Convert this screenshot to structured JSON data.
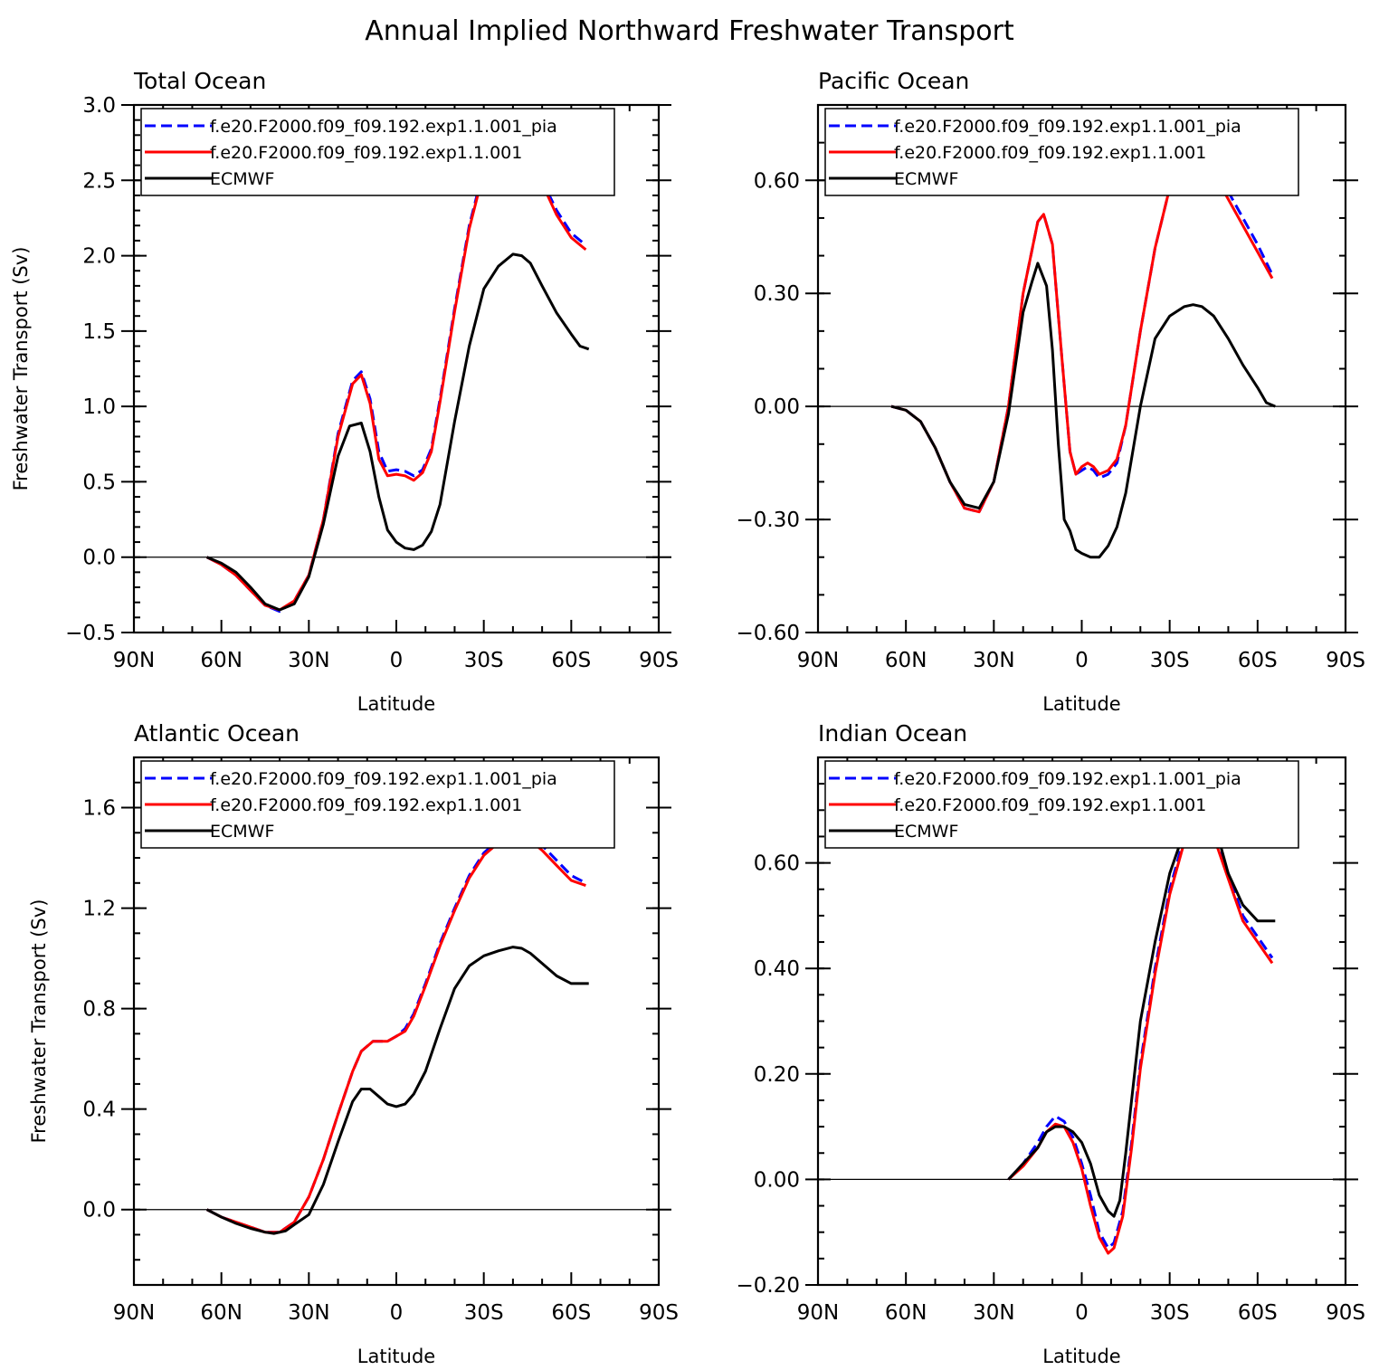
{
  "title": "Annual Implied Northward Freshwater Transport",
  "ylabel": "Freshwater Transport (Sv)",
  "xlabel": "Latitude",
  "x_ticks": [
    {
      "v": -90,
      "label": "90N"
    },
    {
      "v": -60,
      "label": "60N"
    },
    {
      "v": -30,
      "label": "30N"
    },
    {
      "v": 0,
      "label": "0"
    },
    {
      "v": 30,
      "label": "30S"
    },
    {
      "v": 60,
      "label": "60S"
    },
    {
      "v": 90,
      "label": "90S"
    }
  ],
  "series_styles": [
    {
      "name": "f.e20.F2000.f09_f09.192.exp1.1.001_pia",
      "color": "#0000ff",
      "dash": "12,6"
    },
    {
      "name": "f.e20.F2000.f09_f09.192.exp1.1.001",
      "color": "#ff0000",
      "dash": ""
    },
    {
      "name": "ECMWF",
      "color": "#000000",
      "dash": ""
    }
  ],
  "chart_data": [
    {
      "type": "line",
      "title": "Total Ocean",
      "xlim": [
        -90,
        90
      ],
      "ylim": [
        -0.5,
        3.0
      ],
      "ymajor": [
        -0.5,
        0.0,
        0.5,
        1.0,
        1.5,
        2.0,
        2.5,
        3.0
      ],
      "ylabels": [
        "−0.5",
        "0.0",
        "0.5",
        "1.0",
        "1.5",
        "2.0",
        "2.5",
        "3.0"
      ],
      "yminor_step": 0.1,
      "show_ylabel": true,
      "series": [
        {
          "name": "f.e20.F2000.f09_f09.192.exp1.1.001_pia",
          "x": [
            -65,
            -60,
            -55,
            -50,
            -45,
            -40,
            -35,
            -30,
            -25,
            -20,
            -15,
            -12,
            -9,
            -6,
            -3,
            0,
            3,
            6,
            9,
            12,
            15,
            20,
            25,
            30,
            35,
            40,
            45,
            50,
            55,
            60,
            65
          ],
          "y": [
            0,
            -0.05,
            -0.12,
            -0.22,
            -0.32,
            -0.36,
            -0.29,
            -0.12,
            0.25,
            0.82,
            1.17,
            1.23,
            1.05,
            0.7,
            0.57,
            0.58,
            0.57,
            0.54,
            0.58,
            0.72,
            1.05,
            1.65,
            2.2,
            2.58,
            2.78,
            2.85,
            2.72,
            2.5,
            2.3,
            2.15,
            2.07
          ]
        },
        {
          "name": "f.e20.F2000.f09_f09.192.exp1.1.001",
          "x": [
            -65,
            -60,
            -55,
            -50,
            -45,
            -40,
            -35,
            -30,
            -25,
            -20,
            -15,
            -12,
            -9,
            -6,
            -3,
            0,
            3,
            6,
            9,
            12,
            15,
            20,
            25,
            30,
            35,
            40,
            45,
            50,
            55,
            60,
            65
          ],
          "y": [
            0,
            -0.05,
            -0.12,
            -0.22,
            -0.32,
            -0.35,
            -0.29,
            -0.12,
            0.25,
            0.8,
            1.15,
            1.21,
            1.02,
            0.65,
            0.54,
            0.55,
            0.54,
            0.51,
            0.56,
            0.7,
            1.03,
            1.63,
            2.18,
            2.56,
            2.75,
            2.82,
            2.7,
            2.48,
            2.27,
            2.12,
            2.04
          ]
        },
        {
          "name": "ECMWF",
          "x": [
            -65,
            -60,
            -55,
            -50,
            -45,
            -40,
            -35,
            -30,
            -25,
            -20,
            -16,
            -12,
            -9,
            -6,
            -3,
            0,
            3,
            6,
            9,
            12,
            15,
            20,
            25,
            30,
            35,
            40,
            43,
            46,
            50,
            55,
            60,
            63,
            66
          ],
          "y": [
            0,
            -0.04,
            -0.1,
            -0.2,
            -0.31,
            -0.35,
            -0.31,
            -0.13,
            0.22,
            0.67,
            0.87,
            0.89,
            0.7,
            0.4,
            0.18,
            0.1,
            0.06,
            0.05,
            0.08,
            0.17,
            0.35,
            0.9,
            1.4,
            1.78,
            1.93,
            2.01,
            2.0,
            1.95,
            1.8,
            1.62,
            1.48,
            1.4,
            1.38
          ]
        }
      ]
    },
    {
      "type": "line",
      "title": "Pacific Ocean",
      "xlim": [
        -90,
        90
      ],
      "ylim": [
        -0.6,
        0.8
      ],
      "ymajor": [
        -0.6,
        -0.3,
        0.0,
        0.3,
        0.6
      ],
      "ylabels": [
        "−0.60",
        "−0.30",
        "0.00",
        "0.30",
        "0.60"
      ],
      "yminor_step": 0.1,
      "show_ylabel": false,
      "series": [
        {
          "name": "f.e20.F2000.f09_f09.192.exp1.1.001_pia",
          "x": [
            -65,
            -60,
            -55,
            -50,
            -45,
            -40,
            -35,
            -30,
            -25,
            -20,
            -15,
            -13,
            -10,
            -7,
            -4,
            -2,
            0,
            2,
            4,
            6,
            9,
            12,
            15,
            20,
            25,
            30,
            35,
            40,
            45,
            50,
            55,
            60,
            65
          ],
          "y": [
            0,
            -0.01,
            -0.04,
            -0.11,
            -0.2,
            -0.27,
            -0.28,
            -0.2,
            0.0,
            0.3,
            0.49,
            0.51,
            0.43,
            0.15,
            -0.12,
            -0.18,
            -0.17,
            -0.16,
            -0.17,
            -0.19,
            -0.18,
            -0.15,
            -0.05,
            0.2,
            0.42,
            0.58,
            0.65,
            0.66,
            0.63,
            0.57,
            0.5,
            0.43,
            0.35
          ]
        },
        {
          "name": "f.e20.F2000.f09_f09.192.exp1.1.001",
          "x": [
            -65,
            -60,
            -55,
            -50,
            -45,
            -40,
            -35,
            -30,
            -25,
            -20,
            -15,
            -13,
            -10,
            -7,
            -4,
            -2,
            0,
            2,
            4,
            6,
            9,
            12,
            15,
            20,
            25,
            30,
            35,
            40,
            45,
            50,
            55,
            60,
            65
          ],
          "y": [
            0,
            -0.01,
            -0.04,
            -0.11,
            -0.2,
            -0.27,
            -0.28,
            -0.2,
            0.0,
            0.3,
            0.49,
            0.51,
            0.43,
            0.15,
            -0.12,
            -0.18,
            -0.16,
            -0.15,
            -0.16,
            -0.18,
            -0.17,
            -0.14,
            -0.05,
            0.2,
            0.42,
            0.58,
            0.64,
            0.64,
            0.62,
            0.55,
            0.48,
            0.41,
            0.34
          ]
        },
        {
          "name": "ECMWF",
          "x": [
            -65,
            -60,
            -55,
            -50,
            -45,
            -40,
            -35,
            -30,
            -25,
            -20,
            -17,
            -15,
            -12,
            -10,
            -8,
            -6,
            -4,
            -2,
            0,
            3,
            6,
            9,
            12,
            15,
            20,
            25,
            30,
            35,
            38,
            41,
            45,
            50,
            55,
            60,
            63,
            66
          ],
          "y": [
            0,
            -0.01,
            -0.04,
            -0.11,
            -0.2,
            -0.26,
            -0.27,
            -0.2,
            -0.02,
            0.25,
            0.33,
            0.38,
            0.32,
            0.15,
            -0.1,
            -0.3,
            -0.33,
            -0.38,
            -0.39,
            -0.4,
            -0.4,
            -0.37,
            -0.32,
            -0.23,
            0.0,
            0.18,
            0.24,
            0.265,
            0.27,
            0.265,
            0.24,
            0.18,
            0.11,
            0.05,
            0.01,
            0.0
          ]
        }
      ]
    },
    {
      "type": "line",
      "title": "Atlantic Ocean",
      "xlim": [
        -90,
        90
      ],
      "ylim": [
        -0.3,
        1.8
      ],
      "ymajor": [
        0.0,
        0.4,
        0.8,
        1.2,
        1.6
      ],
      "ylabels": [
        "0.0",
        "0.4",
        "0.8",
        "1.2",
        "1.6"
      ],
      "yminor_step": 0.1,
      "show_ylabel": true,
      "series": [
        {
          "name": "f.e20.F2000.f09_f09.192.exp1.1.001_pia",
          "x": [
            -65,
            -60,
            -55,
            -50,
            -45,
            -40,
            -35,
            -30,
            -25,
            -20,
            -15,
            -12,
            -8,
            -5,
            -3,
            0,
            3,
            6,
            10,
            15,
            20,
            25,
            30,
            35,
            40,
            45,
            50,
            55,
            60,
            65
          ],
          "y": [
            0,
            -0.03,
            -0.05,
            -0.07,
            -0.09,
            -0.09,
            -0.05,
            0.05,
            0.2,
            0.38,
            0.55,
            0.63,
            0.67,
            0.67,
            0.67,
            0.69,
            0.72,
            0.78,
            0.9,
            1.06,
            1.2,
            1.33,
            1.42,
            1.47,
            1.5,
            1.49,
            1.45,
            1.39,
            1.33,
            1.3
          ]
        },
        {
          "name": "f.e20.F2000.f09_f09.192.exp1.1.001",
          "x": [
            -65,
            -60,
            -55,
            -50,
            -45,
            -40,
            -35,
            -30,
            -25,
            -20,
            -15,
            -12,
            -8,
            -5,
            -3,
            0,
            3,
            6,
            10,
            15,
            20,
            25,
            30,
            35,
            40,
            45,
            50,
            55,
            60,
            65
          ],
          "y": [
            0,
            -0.03,
            -0.05,
            -0.07,
            -0.09,
            -0.09,
            -0.05,
            0.05,
            0.2,
            0.38,
            0.55,
            0.63,
            0.67,
            0.67,
            0.67,
            0.69,
            0.71,
            0.77,
            0.89,
            1.05,
            1.19,
            1.32,
            1.41,
            1.46,
            1.49,
            1.48,
            1.43,
            1.37,
            1.31,
            1.29
          ]
        },
        {
          "name": "ECMWF",
          "x": [
            -65,
            -60,
            -55,
            -50,
            -45,
            -42,
            -38,
            -35,
            -30,
            -25,
            -20,
            -15,
            -12,
            -9,
            -6,
            -3,
            0,
            3,
            6,
            10,
            15,
            20,
            25,
            30,
            35,
            40,
            43,
            46,
            50,
            55,
            60,
            66
          ],
          "y": [
            0,
            -0.03,
            -0.055,
            -0.075,
            -0.09,
            -0.095,
            -0.085,
            -0.06,
            -0.02,
            0.1,
            0.27,
            0.43,
            0.48,
            0.48,
            0.45,
            0.42,
            0.41,
            0.42,
            0.46,
            0.55,
            0.72,
            0.88,
            0.97,
            1.01,
            1.03,
            1.045,
            1.04,
            1.02,
            0.98,
            0.93,
            0.9,
            0.9
          ]
        }
      ]
    },
    {
      "type": "line",
      "title": "Indian Ocean",
      "xlim": [
        -90,
        90
      ],
      "ylim": [
        -0.2,
        0.8
      ],
      "ymajor": [
        -0.2,
        0.0,
        0.2,
        0.4,
        0.6
      ],
      "ylabels": [
        "−0.20",
        "0.00",
        "0.20",
        "0.40",
        "0.60"
      ],
      "yminor_step": 0.05,
      "show_ylabel": false,
      "series": [
        {
          "name": "f.e20.F2000.f09_f09.192.exp1.1.001_pia",
          "x": [
            -25,
            -20,
            -15,
            -12,
            -9,
            -6,
            -3,
            0,
            3,
            6,
            9,
            11,
            14,
            17,
            20,
            25,
            30,
            35,
            40,
            42,
            45,
            50,
            55,
            60,
            65
          ],
          "y": [
            0,
            0.03,
            0.07,
            0.1,
            0.12,
            0.11,
            0.08,
            0.03,
            -0.03,
            -0.1,
            -0.13,
            -0.12,
            -0.06,
            0.07,
            0.22,
            0.4,
            0.55,
            0.65,
            0.69,
            0.69,
            0.66,
            0.58,
            0.5,
            0.46,
            0.42
          ]
        },
        {
          "name": "f.e20.F2000.f09_f09.192.exp1.1.001",
          "x": [
            -25,
            -20,
            -15,
            -12,
            -9,
            -6,
            -3,
            0,
            3,
            6,
            9,
            11,
            14,
            17,
            20,
            25,
            30,
            35,
            40,
            42,
            45,
            50,
            55,
            60,
            65
          ],
          "y": [
            0,
            0.025,
            0.06,
            0.09,
            0.105,
            0.1,
            0.07,
            0.02,
            -0.05,
            -0.11,
            -0.14,
            -0.13,
            -0.07,
            0.06,
            0.21,
            0.39,
            0.54,
            0.64,
            0.68,
            0.68,
            0.65,
            0.57,
            0.49,
            0.45,
            0.41
          ]
        },
        {
          "name": "ECMWF",
          "x": [
            -25,
            -20,
            -15,
            -12,
            -9,
            -6,
            -3,
            0,
            3,
            6,
            9,
            11,
            13,
            15,
            18,
            20,
            25,
            30,
            35,
            38,
            41,
            43,
            46,
            50,
            55,
            60,
            63,
            66
          ],
          "y": [
            0,
            0.03,
            0.06,
            0.09,
            0.1,
            0.1,
            0.09,
            0.07,
            0.03,
            -0.03,
            -0.06,
            -0.07,
            -0.04,
            0.05,
            0.2,
            0.3,
            0.45,
            0.58,
            0.66,
            0.7,
            0.71,
            0.7,
            0.66,
            0.58,
            0.52,
            0.49,
            0.49,
            0.49
          ]
        }
      ]
    }
  ]
}
